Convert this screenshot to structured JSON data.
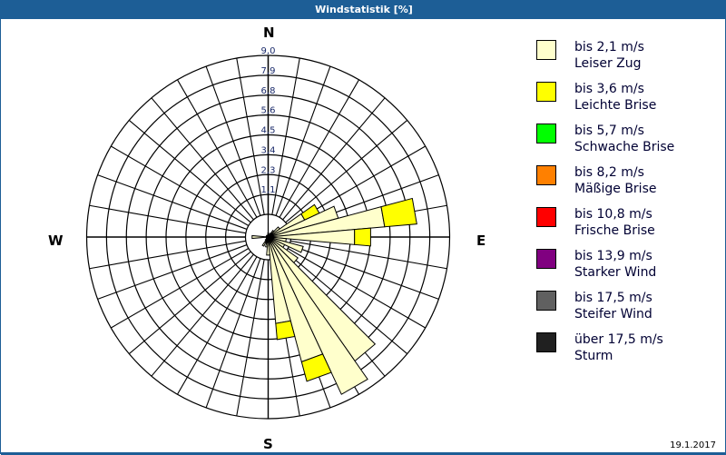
{
  "window": {
    "title": "Windstatistik [%]",
    "date": "19.1.2017"
  },
  "compass": {
    "n": "N",
    "e": "E",
    "s": "S",
    "w": "W"
  },
  "colors": {
    "title_bar": "#1d5e96",
    "grid": "#000000",
    "ring_label": "#1a2a6a"
  },
  "legend": [
    {
      "line1": "bis 2,1 m/s",
      "line2": "Leiser Zug",
      "color": "#ffffcc"
    },
    {
      "line1": "bis 3,6 m/s",
      "line2": "Leichte Brise",
      "color": "#ffff00"
    },
    {
      "line1": "bis 5,7 m/s",
      "line2": "Schwache Brise",
      "color": "#00ff00"
    },
    {
      "line1": "bis 8,2 m/s",
      "line2": "Mäßige Brise",
      "color": "#ff8000"
    },
    {
      "line1": "bis 10,8 m/s",
      "line2": "Frische Brise",
      "color": "#ff0000"
    },
    {
      "line1": "bis 13,9 m/s",
      "line2": "Starker Wind",
      "color": "#800080"
    },
    {
      "line1": "bis 17,5 m/s",
      "line2": "Steifer Wind",
      "color": "#606060"
    },
    {
      "line1": "über 17,5 m/s",
      "line2": "Sturm",
      "color": "#202020"
    }
  ],
  "chart_data": {
    "type": "wind-rose",
    "title": "Windstatistik [%]",
    "unit": "%",
    "sector_width_deg": 10,
    "radial_ticks": [
      "1,1",
      "2,3",
      "3,4",
      "4,5",
      "5,6",
      "6,8",
      "7,9",
      "9,0"
    ],
    "radial_max": 9.0,
    "series_names": [
      "bis 2,1 m/s",
      "bis 3,6 m/s"
    ],
    "sectors": [
      {
        "dir": 0,
        "values": [
          0.2,
          0.0
        ]
      },
      {
        "dir": 10,
        "values": [
          0.1,
          0.0
        ]
      },
      {
        "dir": 20,
        "values": [
          0.1,
          0.0
        ]
      },
      {
        "dir": 30,
        "values": [
          0.2,
          0.0
        ]
      },
      {
        "dir": 40,
        "values": [
          0.4,
          0.0
        ]
      },
      {
        "dir": 50,
        "values": [
          0.7,
          0.0
        ]
      },
      {
        "dir": 60,
        "values": [
          2.0,
          0.8
        ]
      },
      {
        "dir": 70,
        "values": [
          3.6,
          0.0
        ]
      },
      {
        "dir": 80,
        "values": [
          5.8,
          1.6
        ]
      },
      {
        "dir": 90,
        "values": [
          4.3,
          0.8
        ]
      },
      {
        "dir": 100,
        "values": [
          0.9,
          0.0
        ]
      },
      {
        "dir": 110,
        "values": [
          1.8,
          0.0
        ]
      },
      {
        "dir": 120,
        "values": [
          0.9,
          0.0
        ]
      },
      {
        "dir": 130,
        "values": [
          1.8,
          0.0
        ]
      },
      {
        "dir": 140,
        "values": [
          7.5,
          0.0
        ]
      },
      {
        "dir": 150,
        "values": [
          8.6,
          0.0
        ]
      },
      {
        "dir": 160,
        "values": [
          6.4,
          1.0
        ]
      },
      {
        "dir": 170,
        "values": [
          4.3,
          0.8
        ]
      },
      {
        "dir": 180,
        "values": [
          0.9,
          0.0
        ]
      },
      {
        "dir": 190,
        "values": [
          0.5,
          0.0
        ]
      },
      {
        "dir": 200,
        "values": [
          0.3,
          0.0
        ]
      },
      {
        "dir": 210,
        "values": [
          0.5,
          0.0
        ]
      },
      {
        "dir": 220,
        "values": [
          0.2,
          0.0
        ]
      },
      {
        "dir": 230,
        "values": [
          0.1,
          0.0
        ]
      },
      {
        "dir": 240,
        "values": [
          0.1,
          0.0
        ]
      },
      {
        "dir": 250,
        "values": [
          0.1,
          0.0
        ]
      },
      {
        "dir": 260,
        "values": [
          0.1,
          0.0
        ]
      },
      {
        "dir": 270,
        "values": [
          0.8,
          0.0
        ]
      },
      {
        "dir": 280,
        "values": [
          0.1,
          0.0
        ]
      },
      {
        "dir": 290,
        "values": [
          0.1,
          0.0
        ]
      },
      {
        "dir": 300,
        "values": [
          0.1,
          0.0
        ]
      },
      {
        "dir": 310,
        "values": [
          0.1,
          0.0
        ]
      },
      {
        "dir": 320,
        "values": [
          0.1,
          0.0
        ]
      },
      {
        "dir": 330,
        "values": [
          0.1,
          0.0
        ]
      },
      {
        "dir": 340,
        "values": [
          0.1,
          0.0
        ]
      },
      {
        "dir": 350,
        "values": [
          0.1,
          0.0
        ]
      }
    ]
  }
}
